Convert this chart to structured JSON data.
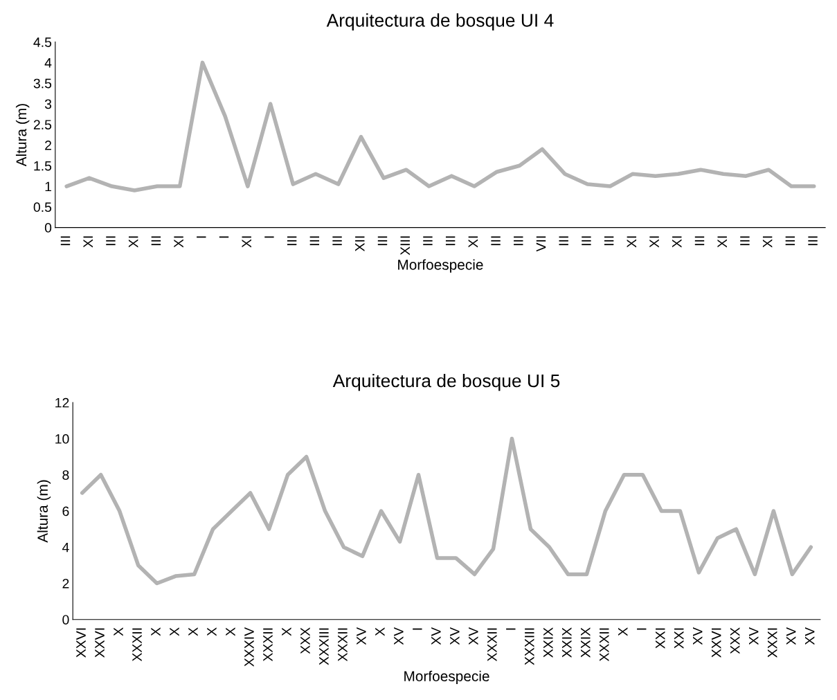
{
  "chart_data": [
    {
      "type": "line",
      "title": "Arquitectura de bosque UI 4",
      "xlabel": "Morfoespecie",
      "ylabel": "Altura (m)",
      "categories": [
        "III",
        "XI",
        "III",
        "XI",
        "III",
        "XI",
        "I",
        "I",
        "XI",
        "I",
        "III",
        "III",
        "III",
        "XII",
        "III",
        "XIII",
        "III",
        "III",
        "XI",
        "III",
        "III",
        "VII",
        "III",
        "III",
        "III",
        "XI",
        "XI",
        "XI",
        "III",
        "XI",
        "III",
        "XI",
        "III",
        "III"
      ],
      "series": [
        {
          "color": "#b3b3b3",
          "values": [
            1.0,
            1.2,
            1.0,
            0.9,
            1.0,
            1.0,
            4.0,
            2.7,
            1.0,
            3.0,
            1.05,
            1.3,
            1.05,
            2.2,
            1.2,
            1.4,
            1.0,
            1.25,
            1.0,
            1.35,
            1.5,
            1.9,
            1.3,
            1.05,
            1.0,
            1.3,
            1.25,
            1.3,
            1.4,
            1.3,
            1.25,
            1.4,
            1.0,
            1.0
          ]
        }
      ],
      "ylim": [
        0,
        4.5
      ],
      "yticks": [
        0,
        0.5,
        1,
        1.5,
        2,
        2.5,
        3,
        3.5,
        4,
        4.5
      ],
      "grid": false,
      "legend": false
    },
    {
      "type": "line",
      "title": "Arquitectura de bosque UI 5",
      "xlabel": "Morfoespecie",
      "ylabel": "Altura (m)",
      "categories": [
        "XXVI",
        "XXVI",
        "X",
        "XXXII",
        "X",
        "X",
        "X",
        "X",
        "X",
        "XXXIV",
        "XXXII",
        "X",
        "XXX",
        "XXXIII",
        "XXXII",
        "XV",
        "X",
        "XV",
        "I",
        "XV",
        "XV",
        "XV",
        "XXXII",
        "I",
        "XXXIII",
        "XXIX",
        "XXIX",
        "XXIX",
        "XXXII",
        "X",
        "I",
        "XXI",
        "XXI",
        "XV",
        "XXVI",
        "XXX",
        "XV",
        "XXXI",
        "XV",
        "XV"
      ],
      "series": [
        {
          "color": "#b3b3b3",
          "values": [
            7,
            8,
            6,
            3,
            2,
            2.4,
            2.5,
            5,
            6,
            7,
            5,
            8,
            9,
            6,
            4,
            3.5,
            6,
            4.3,
            8,
            3.4,
            3.4,
            2.5,
            3.9,
            10,
            5,
            4,
            2.5,
            2.5,
            6,
            8,
            8,
            6,
            6,
            2.6,
            4.5,
            5,
            2.5,
            6,
            2.5,
            4
          ]
        }
      ],
      "ylim": [
        0,
        12
      ],
      "yticks": [
        0,
        2,
        4,
        6,
        8,
        10,
        12
      ],
      "grid": false,
      "legend": false
    }
  ]
}
